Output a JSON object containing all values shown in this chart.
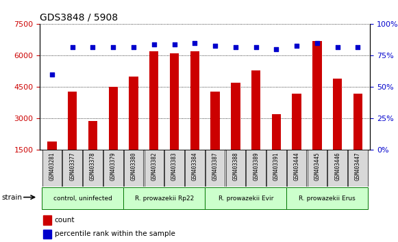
{
  "title": "GDS3848 / 5908",
  "samples": [
    "GSM403281",
    "GSM403377",
    "GSM403378",
    "GSM403379",
    "GSM403380",
    "GSM403382",
    "GSM403383",
    "GSM403384",
    "GSM403387",
    "GSM403388",
    "GSM403389",
    "GSM403391",
    "GSM403444",
    "GSM403445",
    "GSM403446",
    "GSM403447"
  ],
  "counts": [
    1900,
    4300,
    2900,
    4500,
    5000,
    6200,
    6100,
    6200,
    4300,
    4700,
    5300,
    3200,
    4200,
    6700,
    4900,
    4200
  ],
  "percentiles": [
    60,
    82,
    82,
    82,
    82,
    84,
    84,
    85,
    83,
    82,
    82,
    80,
    83,
    85,
    82,
    82
  ],
  "groups": [
    {
      "label": "control, uninfected",
      "start": 0,
      "end": 4,
      "color": "#aaffaa"
    },
    {
      "label": "R. prowazekii Rp22",
      "start": 4,
      "end": 8,
      "color": "#aaffaa"
    },
    {
      "label": "R. prowazekii Evir",
      "start": 8,
      "end": 12,
      "color": "#aaffaa"
    },
    {
      "label": "R. prowazekii Erus",
      "start": 12,
      "end": 16,
      "color": "#aaffaa"
    }
  ],
  "ylim_left": [
    1500,
    7500
  ],
  "ylim_right": [
    0,
    100
  ],
  "yticks_left": [
    1500,
    3000,
    4500,
    6000,
    7500
  ],
  "yticks_right": [
    0,
    25,
    50,
    75,
    100
  ],
  "bar_color": "#cc0000",
  "dot_color": "#0000cc",
  "grid_color": "#000000",
  "bg_color": "#ffffff",
  "axis_color_left": "#cc0000",
  "axis_color_right": "#0000cc",
  "legend_count_color": "#cc0000",
  "legend_pct_color": "#0000cc"
}
